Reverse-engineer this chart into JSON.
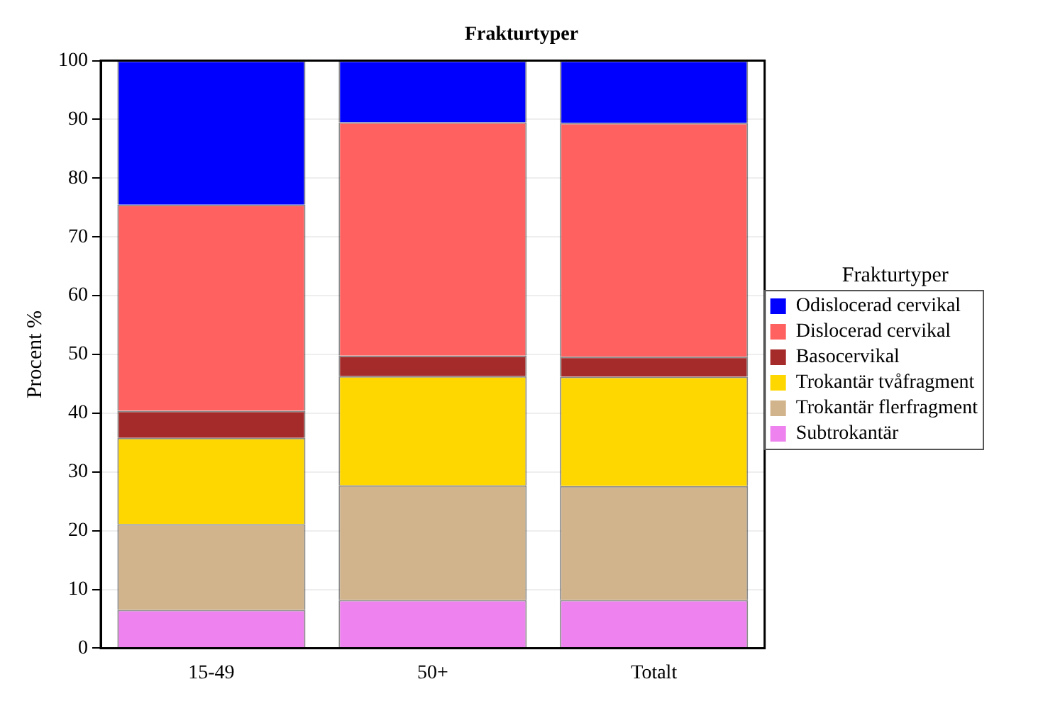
{
  "chart_data": {
    "type": "bar",
    "title": "Frakturtyper",
    "ylabel": "Procent %",
    "legend_title": "Frakturtyper",
    "categories": [
      "15-49",
      "50+",
      "Totalt"
    ],
    "stacked": true,
    "series": [
      {
        "name": "Subtrokantär",
        "color": "#ee82ee",
        "values": [
          6.5,
          8.2,
          8.2
        ]
      },
      {
        "name": "Trokantär flerfragment",
        "color": "#d2b48c",
        "values": [
          14.6,
          19.5,
          19.4
        ]
      },
      {
        "name": "Trokantär tvåfragment",
        "color": "#ffd700",
        "values": [
          14.7,
          18.6,
          18.6
        ]
      },
      {
        "name": "Basocervikal",
        "color": "#a52a2a",
        "values": [
          4.6,
          3.5,
          3.4
        ]
      },
      {
        "name": "Dislocerad cervikal",
        "color": "#ff6060",
        "values": [
          35.1,
          39.7,
          39.8
        ]
      },
      {
        "name": "Odislocerad cervikal",
        "color": "#0000ff",
        "values": [
          24.5,
          10.5,
          10.6
        ]
      }
    ],
    "ylim": [
      0,
      100
    ],
    "yticks": [
      0,
      10,
      20,
      30,
      40,
      50,
      60,
      70,
      80,
      90,
      100
    ],
    "grid": "y",
    "legend": "right"
  }
}
